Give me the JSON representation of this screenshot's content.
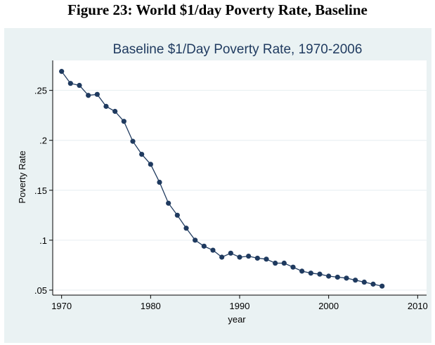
{
  "page": {
    "caption": "Figure 23: World $1/day Poverty Rate, Baseline"
  },
  "chart_data": {
    "type": "line",
    "title": "Baseline $1/Day Poverty Rate, 1970-2006",
    "xlabel": "year",
    "ylabel": "Poverty Rate",
    "xlim": [
      1969,
      2011
    ],
    "ylim": [
      0.045,
      0.28
    ],
    "xticks": [
      1970,
      1980,
      1990,
      2000,
      2010
    ],
    "xtick_labels": [
      "1970",
      "1980",
      "1990",
      "2000",
      "2010"
    ],
    "yticks": [
      0.05,
      0.1,
      0.15,
      0.2,
      0.25
    ],
    "ytick_labels": [
      ".05",
      ".1",
      ".15",
      ".2",
      ".25"
    ],
    "grid": true,
    "markers": true,
    "colors": {
      "series": "#1f3a5f",
      "plot_background": "#ffffff",
      "frame_background": "#eaf2f3",
      "grid": "#e6eef0"
    },
    "series": [
      {
        "x": [
          1970,
          1971,
          1972,
          1973,
          1974,
          1975,
          1976,
          1977,
          1978,
          1979,
          1980,
          1981,
          1982,
          1983,
          1984,
          1985,
          1986,
          1987,
          1988,
          1989,
          1990,
          1991,
          1992,
          1993,
          1994,
          1995,
          1996,
          1997,
          1998,
          1999,
          2000,
          2001,
          2002,
          2003,
          2004,
          2005,
          2006
        ],
        "values": [
          0.269,
          0.257,
          0.255,
          0.245,
          0.246,
          0.234,
          0.229,
          0.219,
          0.199,
          0.186,
          0.176,
          0.158,
          0.137,
          0.125,
          0.112,
          0.1,
          0.094,
          0.09,
          0.083,
          0.087,
          0.083,
          0.084,
          0.082,
          0.081,
          0.077,
          0.077,
          0.073,
          0.069,
          0.067,
          0.066,
          0.064,
          0.063,
          0.062,
          0.06,
          0.058,
          0.056,
          0.054
        ]
      }
    ]
  }
}
